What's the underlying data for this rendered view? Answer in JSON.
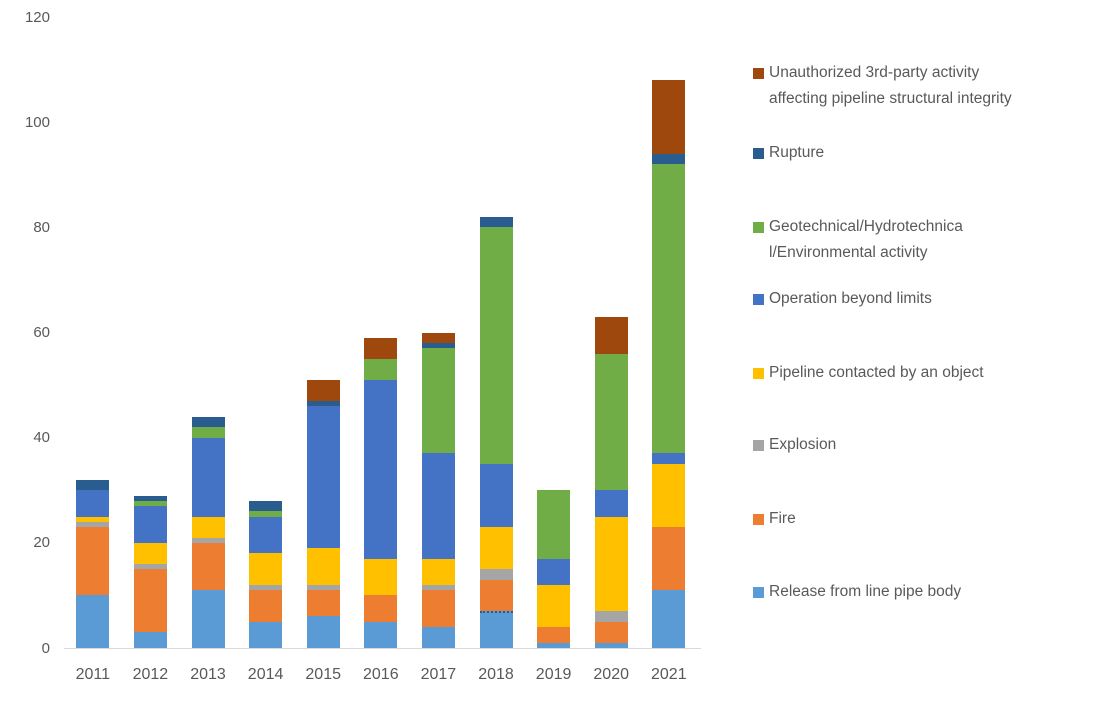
{
  "chart_data": {
    "type": "stacked-bar",
    "title": "",
    "xlabel": "",
    "ylabel": "",
    "categories": [
      "2011",
      "2012",
      "2013",
      "2014",
      "2015",
      "2016",
      "2017",
      "2018",
      "2019",
      "2020",
      "2021"
    ],
    "series": [
      {
        "name": "Release from line pipe body",
        "color": "#5b9bd5",
        "values": [
          10,
          3,
          11,
          5,
          6,
          5,
          4,
          7,
          1,
          1,
          11
        ]
      },
      {
        "name": "Fire",
        "color": "#ed7d31",
        "values": [
          13,
          12,
          9,
          6,
          5,
          5,
          7,
          6,
          3,
          4,
          12
        ]
      },
      {
        "name": "Explosion",
        "color": "#a5a5a5",
        "values": [
          1,
          1,
          1,
          1,
          1,
          0,
          1,
          2,
          0,
          2,
          0
        ]
      },
      {
        "name": "Pipeline contacted by an object",
        "color": "#ffc000",
        "values": [
          1,
          4,
          4,
          6,
          7,
          7,
          5,
          8,
          8,
          18,
          12
        ]
      },
      {
        "name": "Operation beyond limits",
        "color": "#4472c4",
        "values": [
          5,
          7,
          15,
          7,
          27,
          34,
          20,
          12,
          5,
          5,
          2
        ]
      },
      {
        "name": "Geotechnical/Hydrotechnical/Environmental activity",
        "color": "#70ad47",
        "values": [
          0,
          1,
          2,
          1,
          0,
          4,
          20,
          45,
          13,
          26,
          55
        ]
      },
      {
        "name": "Rupture",
        "color": "#2a5d8f",
        "values": [
          2,
          1,
          2,
          2,
          1,
          0,
          1,
          2,
          0,
          0,
          2
        ]
      },
      {
        "name": "Unauthorized 3rd-party activity affecting pipeline structural integrity",
        "color": "#9e480e",
        "values": [
          0,
          0,
          0,
          0,
          4,
          4,
          2,
          0,
          0,
          7,
          14
        ]
      }
    ],
    "totals": [
      32,
      29,
      44,
      28,
      51,
      59,
      60,
      82,
      30,
      63,
      108
    ],
    "y_ticks": [
      0,
      20,
      40,
      60,
      80,
      100,
      120
    ],
    "ylim": [
      0,
      120
    ],
    "gridlines": false,
    "legend_position": "right",
    "annotations": {
      "dotted_segment_boundary": {
        "category": "2018",
        "series": "Release from line pipe body"
      }
    }
  },
  "legend": {
    "items": [
      {
        "label": "Unauthorized 3rd-party activity\naffecting pipeline structural integrity",
        "color": "#9e480e"
      },
      {
        "label": "Rupture",
        "color": "#2a5d8f"
      },
      {
        "label": "Geotechnical/Hydrotechnica\nl/Environmental activity",
        "color": "#70ad47"
      },
      {
        "label": "Operation beyond limits",
        "color": "#4472c4"
      },
      {
        "label": "Pipeline contacted by an object",
        "color": "#ffc000"
      },
      {
        "label": "Explosion",
        "color": "#a5a5a5"
      },
      {
        "label": "Fire",
        "color": "#ed7d31"
      },
      {
        "label": "Release from line pipe body",
        "color": "#5b9bd5"
      }
    ]
  },
  "axis_colors": {
    "baseline": "#d9d9d9",
    "tick_text": "#595959"
  }
}
